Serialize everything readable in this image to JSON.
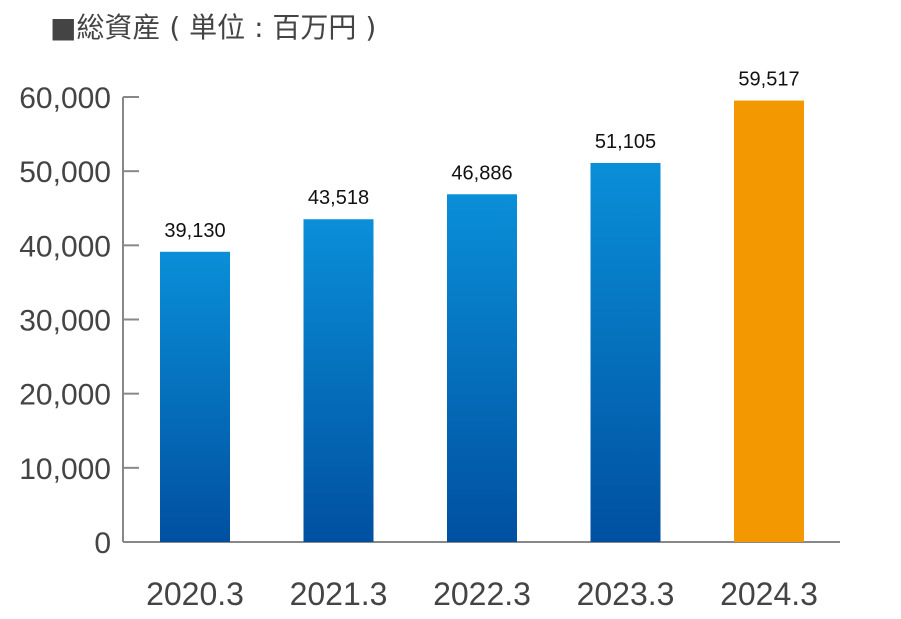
{
  "chart_data": {
    "type": "bar",
    "title": "■総資産 ( 単位 : 百万円 )",
    "categories": [
      "2020.3",
      "2021.3",
      "2022.3",
      "2023.3",
      "2024.3"
    ],
    "values": [
      39130,
      43518,
      46886,
      51105,
      59517
    ],
    "value_labels": [
      "39,130",
      "43,518",
      "46,886",
      "51,105",
      "59,517"
    ],
    "yticks": [
      0,
      10000,
      20000,
      30000,
      40000,
      50000,
      60000
    ],
    "ytick_labels": [
      "0",
      "10,000",
      "20,000",
      "30,000",
      "40,000",
      "50,000",
      "60,000"
    ],
    "ylim": [
      0,
      60000
    ],
    "xlabel": "",
    "ylabel": "",
    "grid": false,
    "highlight_index": 4,
    "colors": {
      "bar_top": "#0a8fd8",
      "bar_bottom": "#0050a0",
      "highlight": "#f39800",
      "axis": "#888888",
      "text": "#444444"
    }
  }
}
